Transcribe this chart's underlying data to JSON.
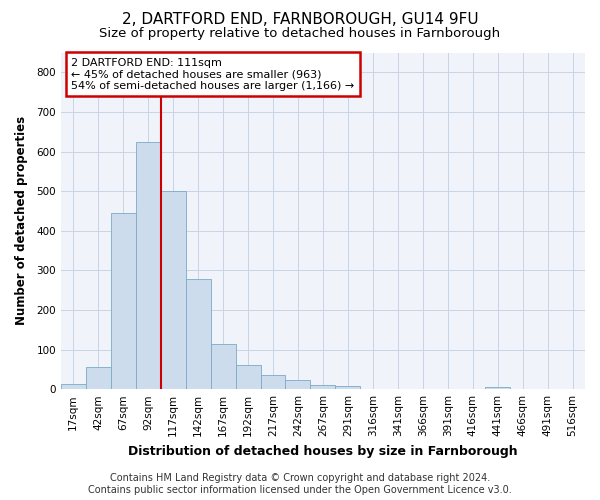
{
  "title": "2, DARTFORD END, FARNBOROUGH, GU14 9FU",
  "subtitle": "Size of property relative to detached houses in Farnborough",
  "xlabel": "Distribution of detached houses by size in Farnborough",
  "ylabel": "Number of detached properties",
  "bar_labels": [
    "17sqm",
    "42sqm",
    "67sqm",
    "92sqm",
    "117sqm",
    "142sqm",
    "167sqm",
    "192sqm",
    "217sqm",
    "242sqm",
    "267sqm",
    "291sqm",
    "316sqm",
    "341sqm",
    "366sqm",
    "391sqm",
    "416sqm",
    "441sqm",
    "466sqm",
    "491sqm",
    "516sqm"
  ],
  "bar_values": [
    12,
    55,
    445,
    625,
    500,
    278,
    115,
    60,
    35,
    23,
    10,
    7,
    0,
    0,
    0,
    0,
    0,
    5,
    0,
    0,
    0
  ],
  "bar_color": "#ccdcec",
  "bar_edge_color": "#7aaac8",
  "annotation_line1": "2 DARTFORD END: 111sqm",
  "annotation_line2": "← 45% of detached houses are smaller (963)",
  "annotation_line3": "54% of semi-detached houses are larger (1,166) →",
  "annotation_box_facecolor": "#ffffff",
  "annotation_box_edgecolor": "#cc0000",
  "vline_color": "#cc0000",
  "ylim": [
    0,
    850
  ],
  "yticks": [
    0,
    100,
    200,
    300,
    400,
    500,
    600,
    700,
    800
  ],
  "footer1": "Contains HM Land Registry data © Crown copyright and database right 2024.",
  "footer2": "Contains public sector information licensed under the Open Government Licence v3.0.",
  "bg_color": "#ffffff",
  "plot_bg_color": "#f0f4fa",
  "grid_color": "#c8d4e4",
  "title_fontsize": 11,
  "subtitle_fontsize": 9.5,
  "xlabel_fontsize": 9,
  "ylabel_fontsize": 8.5,
  "tick_fontsize": 7.5,
  "annotation_fontsize": 8,
  "footer_fontsize": 7
}
